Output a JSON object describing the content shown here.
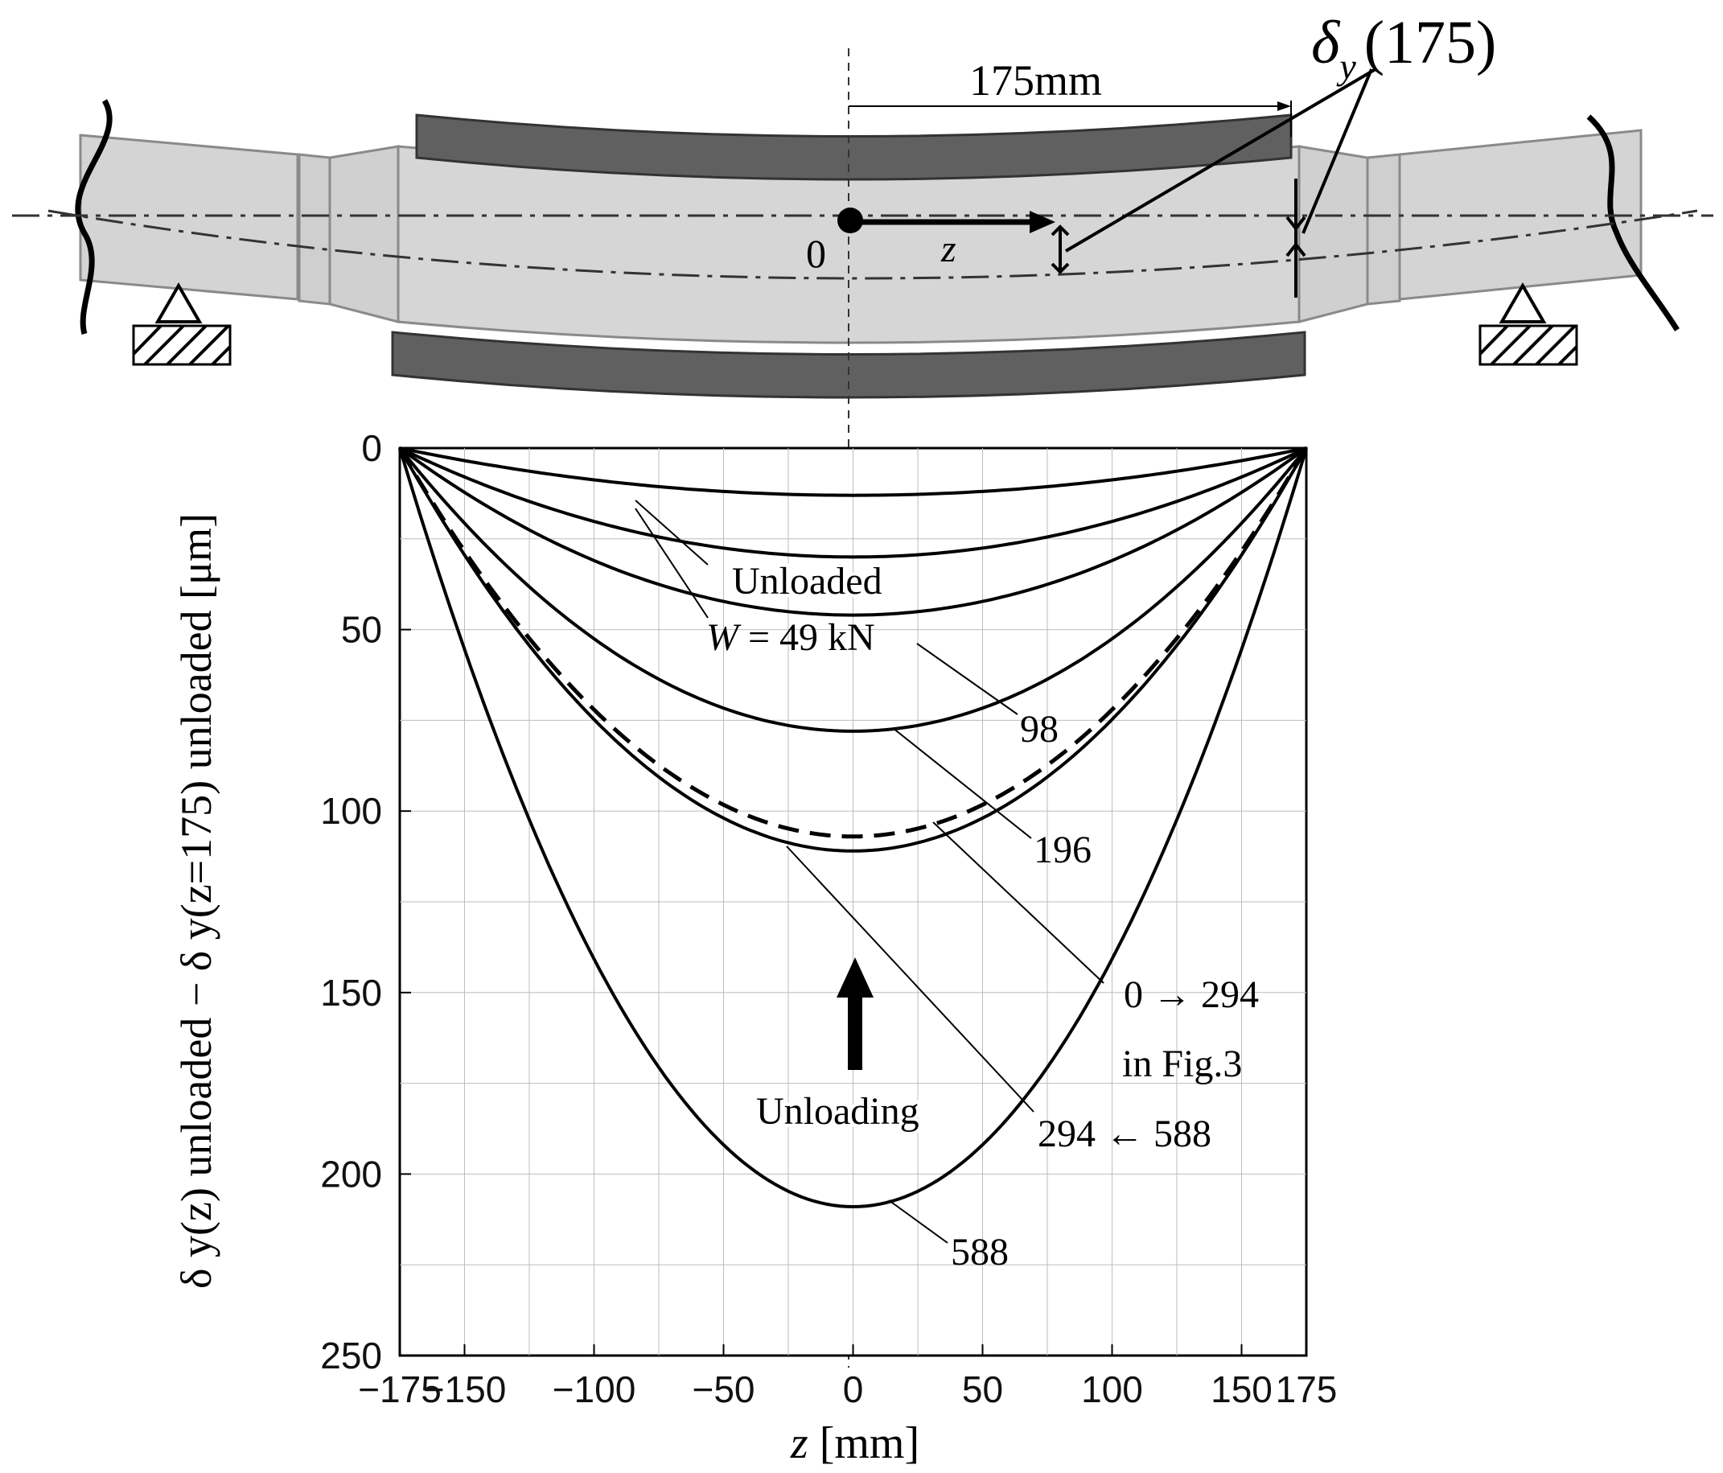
{
  "colors": {
    "shaft": "#d4d4d4",
    "shaft_edge": "#8a8a8a",
    "roller": "#606060",
    "ink": "#000000",
    "grid": "#bdbdbd"
  },
  "diagram": {
    "dim_label": "175mm",
    "delta_symbol": "δ",
    "delta_sub": "y",
    "delta_arg": "(175)",
    "origin_label": "0",
    "z_label": "z"
  },
  "chart_data": {
    "type": "line",
    "xlabel_var": "z",
    "xlabel_unit": "[mm]",
    "ylabel": "δ y(z) unloaded − δ y(z=175) unloaded [μm]",
    "xlim": [
      -175,
      175
    ],
    "ylim": [
      0,
      250
    ],
    "y_inverted": true,
    "grid": true,
    "x_ticks": [
      "−175",
      "−150",
      "−100",
      "−50",
      "0",
      "50",
      "100",
      "150",
      "175"
    ],
    "x_tick_values": [
      -175,
      -150,
      -100,
      -50,
      0,
      50,
      100,
      150,
      175
    ],
    "y_ticks": [
      "0",
      "50",
      "100",
      "150",
      "200",
      "250"
    ],
    "y_tick_values": [
      0,
      50,
      100,
      150,
      200,
      250
    ],
    "series": [
      {
        "name": "Unloaded",
        "peak": 13,
        "asym": 0.0,
        "style": "solid"
      },
      {
        "name": "W = 49 kN",
        "peak": 30,
        "asym": 0.0,
        "style": "solid"
      },
      {
        "name": "98",
        "peak": 46,
        "asym": 0.0,
        "style": "solid"
      },
      {
        "name": "196",
        "peak": 78,
        "asym": 0.0,
        "style": "solid"
      },
      {
        "name": "0 → 294 in Fig.3",
        "peak": 107,
        "asym": 0.0,
        "style": "dashed"
      },
      {
        "name": "294 ← 588",
        "peak": 111,
        "asym": 0.0,
        "style": "solid"
      },
      {
        "name": "588",
        "peak": 209,
        "asym": 0.0,
        "style": "solid"
      }
    ],
    "annotations": {
      "unloaded": "Unloaded",
      "w49_prefix": "W",
      "w49_suffix": "= 49  kN",
      "l98": "98",
      "l196": "196",
      "l0294": "0 → 294",
      "lfig3": "in Fig.3",
      "l294588": "294 ← 588",
      "l588": "588",
      "unloading": "Unloading"
    }
  }
}
